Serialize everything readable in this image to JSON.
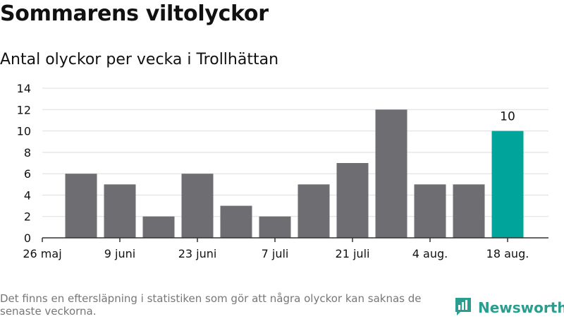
{
  "title": "Sommarens viltolyckor",
  "subtitle": "Antal olyckor per vecka i Trollhättan",
  "footnote": "Det finns en eftersläpning i statistiken som gör att några olyckor kan saknas de senaste veckorna.",
  "brand": {
    "name": "Newsworthy",
    "icon": "bar-chart-logo-icon"
  },
  "colors": {
    "bar": "#6e6d72",
    "highlight": "#00a49a",
    "grid": "#dddddd",
    "axis": "#333333",
    "brand": "#2a9d8f"
  },
  "chart_data": {
    "type": "bar",
    "title": "Sommarens viltolyckor",
    "subtitle": "Antal olyckor per vecka i Trollhättan",
    "weeks_start": [
      "2025-05-26",
      "2025-06-02",
      "2025-06-09",
      "2025-06-16",
      "2025-06-23",
      "2025-06-30",
      "2025-07-07",
      "2025-07-14",
      "2025-07-21",
      "2025-07-28",
      "2025-08-04",
      "2025-08-11",
      "2025-08-18"
    ],
    "values": [
      null,
      6,
      5,
      2,
      6,
      3,
      2,
      5,
      7,
      12,
      5,
      5,
      10
    ],
    "highlight_index": 12,
    "data_labels": [
      {
        "index": 12,
        "text": "10"
      }
    ],
    "x_tick_labels": [
      "26 maj",
      "9 juni",
      "23 juni",
      "7 juli",
      "21 juli",
      "4 aug.",
      "18 aug."
    ],
    "x_tick_weeks": [
      "2025-05-26",
      "2025-06-09",
      "2025-06-23",
      "2025-07-07",
      "2025-07-21",
      "2025-08-04",
      "2025-08-18"
    ],
    "y_ticks": [
      0,
      2,
      4,
      6,
      8,
      10,
      12,
      14
    ],
    "ylim": [
      0,
      14
    ],
    "grid": true,
    "legend": "none"
  }
}
